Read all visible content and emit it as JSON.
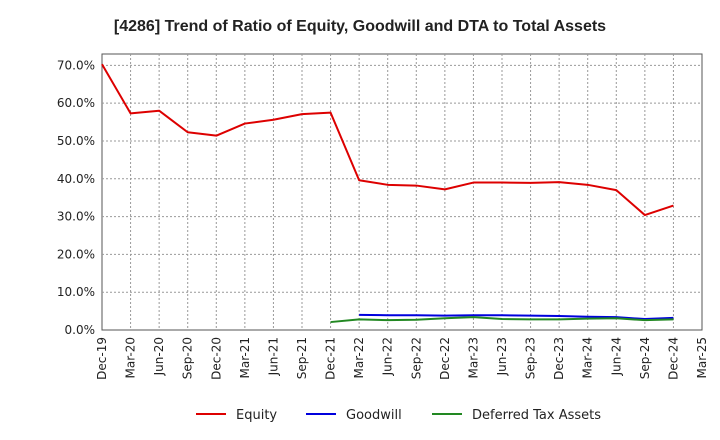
{
  "chart_data": {
    "type": "line",
    "title": "[4286]  Trend of Ratio of Equity, Goodwill and DTA to Total Assets",
    "xlabel": "",
    "ylabel": "",
    "ylim": [
      0,
      73
    ],
    "y_ticks": [
      0,
      10,
      20,
      30,
      40,
      50,
      60,
      70
    ],
    "y_tick_labels": [
      "0.0%",
      "10.0%",
      "20.0%",
      "30.0%",
      "40.0%",
      "50.0%",
      "60.0%",
      "70.0%"
    ],
    "x_tick_labels": [
      "Dec-19",
      "Mar-20",
      "Jun-20",
      "Sep-20",
      "Dec-20",
      "Mar-21",
      "Jun-21",
      "Sep-21",
      "Dec-21",
      "Mar-22",
      "Jun-22",
      "Sep-22",
      "Dec-22",
      "Mar-23",
      "Jun-23",
      "Sep-23",
      "Dec-23",
      "Mar-24",
      "Jun-24",
      "Sep-24",
      "Dec-24",
      "Mar-25"
    ],
    "grid": true,
    "legend_position": "bottom",
    "series": [
      {
        "name": "Equity",
        "color": "#dd0000",
        "start_index": 0,
        "values": [
          70.3,
          57.3,
          58.0,
          52.3,
          51.4,
          54.6,
          55.6,
          57.1,
          57.5,
          39.6,
          38.4,
          38.2,
          37.2,
          39.0,
          39.0,
          38.9,
          39.1,
          38.4,
          37.0,
          30.4,
          32.9
        ]
      },
      {
        "name": "Goodwill",
        "color": "#0000dd",
        "start_index": 9,
        "values": [
          4.0,
          3.9,
          3.9,
          3.8,
          3.9,
          3.9,
          3.8,
          3.7,
          3.5,
          3.4,
          2.9,
          3.2
        ]
      },
      {
        "name": "Deferred Tax Assets",
        "color": "#228822",
        "start_index": 8,
        "values": [
          2.1,
          2.8,
          2.6,
          2.7,
          3.1,
          3.4,
          2.9,
          2.8,
          2.8,
          3.0,
          3.1,
          2.6,
          2.8
        ]
      }
    ]
  }
}
